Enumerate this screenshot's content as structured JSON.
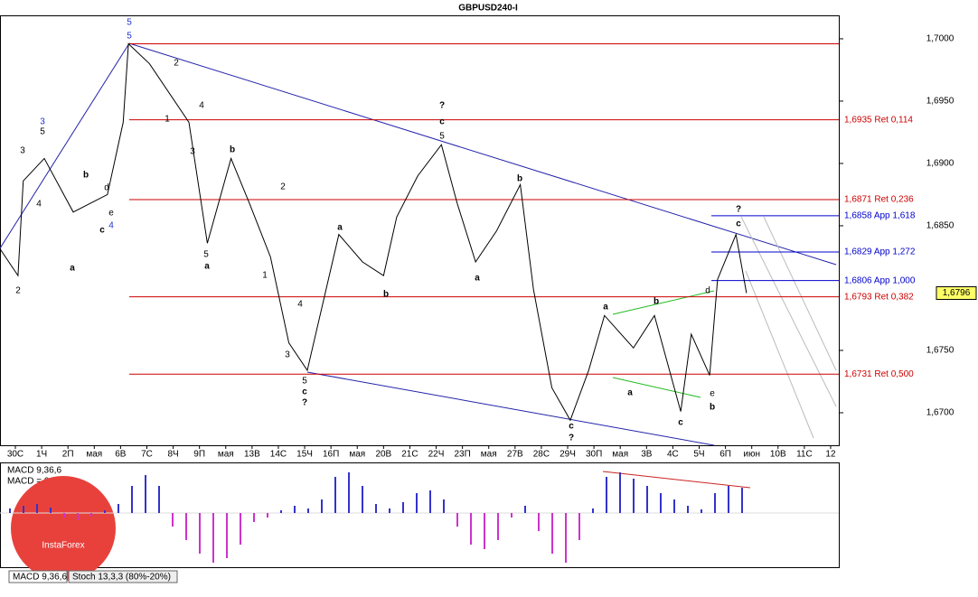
{
  "chart_data": {
    "type": "line",
    "title": "GBPUSD240-I",
    "x": [
      -0.6,
      0.1,
      0.3,
      1.1,
      2.2,
      3.5,
      4.1,
      4.3,
      5.1,
      6.6,
      7.3,
      8.2,
      8.9,
      9.7,
      10.4,
      11.1,
      12.3,
      13.2,
      14.0,
      14.5,
      15.3,
      16.2,
      16.8,
      17.5,
      18.3,
      19.2,
      19.7,
      20.4,
      21.1,
      21.8,
      22.4,
      23.5,
      24.3,
      25.3,
      25.7,
      26.4,
      26.7,
      27.4,
      27.8
    ],
    "values": [
      1.6832,
      1.681,
      1.6886,
      1.6904,
      1.6861,
      1.6875,
      1.6933,
      1.6996,
      1.698,
      1.6933,
      1.6836,
      1.6904,
      1.6868,
      1.6825,
      1.6756,
      1.6734,
      1.6843,
      1.6821,
      1.681,
      1.6857,
      1.689,
      1.6915,
      1.6868,
      1.6821,
      1.6846,
      1.6883,
      1.6799,
      1.672,
      1.6694,
      1.6734,
      1.6778,
      1.6752,
      1.6778,
      1.6701,
      1.6763,
      1.673,
      1.6807,
      1.6843,
      1.6796
    ],
    "color": "#000000",
    "categories": [
      "30С",
      "1Ч",
      "2П",
      "мая",
      "6В",
      "7С",
      "8Ч",
      "9П",
      "мая",
      "13В",
      "14С",
      "15Ч",
      "16П",
      "мая",
      "20В",
      "21С",
      "22Ч",
      "23П",
      "мая",
      "27В",
      "28С",
      "29Ч",
      "30П",
      "мая",
      "3В",
      "4С",
      "5Ч",
      "6П",
      "июн",
      "10В",
      "11С",
      "12"
    ],
    "xlim": [
      -0.584,
      31.31
    ],
    "ylim": [
      1.66739,
      1.70188
    ],
    "yticks": [
      {
        "value": 1.7,
        "label": "1,7000"
      },
      {
        "value": 1.695,
        "label": "1,6950"
      },
      {
        "value": 1.69,
        "label": "1,6900"
      },
      {
        "value": 1.685,
        "label": "1,6850"
      },
      {
        "value": 1.675,
        "label": "1,6750"
      },
      {
        "value": 1.67,
        "label": "1,6700"
      }
    ],
    "current": {
      "value": 1.6796,
      "label": "1,6796"
    },
    "levels": [
      {
        "value": 1.6996,
        "color": "#cc0000"
      },
      {
        "value": 1.6935,
        "label": "1,6935 Ret 0,114",
        "color": "#cc0000"
      },
      {
        "value": 1.6871,
        "label": "1,6871 Ret 0,236",
        "color": "#cc0000"
      },
      {
        "value": 1.6858,
        "label": "1,6858 App 1,618",
        "color": "#0000cc"
      },
      {
        "value": 1.6829,
        "label": "1,6829 App 1,272",
        "color": "#0000cc"
      },
      {
        "value": 1.6806,
        "label": "1,6806 App 1,000",
        "color": "#0000cc"
      },
      {
        "value": 1.6793,
        "label": "1,6793 Ret 0,382",
        "color": "#cc0000"
      },
      {
        "value": 1.6731,
        "label": "1,6731 Ret 0,500",
        "color": "#cc0000"
      }
    ],
    "wave_labels": [
      "5",
      "5",
      "3",
      "5",
      "3",
      "4",
      "2",
      "a",
      "b",
      "d",
      "e",
      "c",
      "4",
      "2",
      "1",
      "4",
      "3",
      "5",
      "a",
      "b",
      "2",
      "1",
      "4",
      "3",
      "5",
      "c",
      "?",
      "a",
      "b",
      "?",
      "c",
      "5",
      "b",
      "a",
      "c",
      "?",
      "a",
      "b",
      "a",
      "c",
      "d",
      "e",
      "b",
      "?",
      "c"
    ],
    "macd": {
      "title": "MACD 9,36,6",
      "value_text": "MACD = 0,00",
      "values": [
        5,
        8,
        10,
        6,
        -5,
        -8,
        -4,
        3,
        10,
        30,
        42,
        30,
        -15,
        -30,
        -45,
        -55,
        -50,
        -35,
        -10,
        -5,
        3,
        8,
        5,
        15,
        40,
        45,
        30,
        10,
        5,
        12,
        22,
        25,
        15,
        -15,
        -35,
        -40,
        -30,
        -5,
        8,
        -20,
        -45,
        -55,
        -30,
        5,
        40,
        45,
        38,
        30,
        22,
        15,
        8,
        4,
        22,
        30,
        28
      ],
      "positive_color": "#3333cc",
      "negative_color": "#cc33cc"
    },
    "tabs": [
      "MACD 9,36,6",
      "Stoch 13,3,3 (80%-20%)"
    ],
    "logo": "InstaForex"
  }
}
